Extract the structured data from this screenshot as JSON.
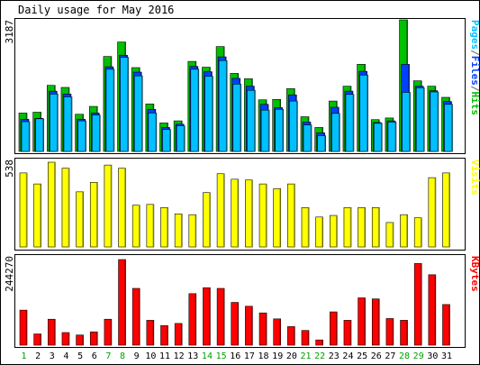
{
  "chart_data": [
    {
      "type": "bar",
      "title": "Daily usage for May 2016",
      "max_label": "3187",
      "ylim": [
        0,
        3187
      ],
      "series_labels": [
        {
          "name": "Pages",
          "color": "#00c0ff"
        },
        {
          "name": "/",
          "color": "#666666"
        },
        {
          "name": "Files",
          "color": "#0040ff"
        },
        {
          "name": "/",
          "color": "#666666"
        },
        {
          "name": "Hits",
          "color": "#00c000"
        }
      ],
      "categories": [
        "1",
        "2",
        "3",
        "4",
        "5",
        "6",
        "7",
        "8",
        "9",
        "10",
        "11",
        "12",
        "13",
        "14",
        "15",
        "16",
        "17",
        "18",
        "19",
        "20",
        "21",
        "22",
        "23",
        "24",
        "25",
        "26",
        "27",
        "28",
        "29",
        "30",
        "31"
      ],
      "weekend_days": [
        "1",
        "7",
        "8",
        "14",
        "15",
        "21",
        "22",
        "28",
        "29"
      ],
      "series": [
        {
          "name": "Hits",
          "color": "#00c000",
          "values": [
            930,
            950,
            1600,
            1550,
            900,
            1090,
            2300,
            2650,
            2030,
            1150,
            690,
            740,
            2180,
            2040,
            2540,
            1890,
            1760,
            1250,
            1260,
            1520,
            840,
            580,
            1220,
            1580,
            2110,
            770,
            810,
            3187,
            1710,
            1580,
            1310
          ]
        },
        {
          "name": "Files",
          "color": "#0040ff",
          "values": [
            780,
            800,
            1460,
            1390,
            780,
            930,
            2050,
            2330,
            1920,
            1020,
            580,
            660,
            2060,
            1930,
            2290,
            1770,
            1580,
            1140,
            1060,
            1370,
            710,
            450,
            1070,
            1460,
            1940,
            700,
            740,
            2110,
            1580,
            1470,
            1210
          ]
        },
        {
          "name": "Pages",
          "color": "#00c0ff",
          "values": [
            720,
            790,
            1390,
            1320,
            740,
            880,
            1990,
            2280,
            1830,
            930,
            530,
            620,
            1990,
            1820,
            2200,
            1630,
            1480,
            1000,
            1020,
            1220,
            640,
            380,
            920,
            1380,
            1850,
            680,
            710,
            1430,
            1540,
            1440,
            1140
          ]
        }
      ]
    },
    {
      "type": "bar",
      "max_label": "538",
      "ylim": [
        0,
        538
      ],
      "series_labels": [
        {
          "name": "Visits",
          "color": "#ffff00"
        }
      ],
      "categories": [
        "1",
        "2",
        "3",
        "4",
        "5",
        "6",
        "7",
        "8",
        "9",
        "10",
        "11",
        "12",
        "13",
        "14",
        "15",
        "16",
        "17",
        "18",
        "19",
        "20",
        "21",
        "22",
        "23",
        "24",
        "25",
        "26",
        "27",
        "28",
        "29",
        "30",
        "31"
      ],
      "series": [
        {
          "name": "Visits",
          "color": "#ffff00",
          "values": [
            470,
            400,
            538,
            500,
            350,
            410,
            520,
            500,
            265,
            270,
            250,
            210,
            205,
            345,
            465,
            430,
            425,
            400,
            370,
            400,
            250,
            190,
            200,
            250,
            250,
            250,
            155,
            205,
            185,
            440,
            470
          ]
        }
      ]
    },
    {
      "type": "bar",
      "max_label": "244270",
      "ylim": [
        0,
        244270
      ],
      "series_labels": [
        {
          "name": "KBytes",
          "color": "#ff0000"
        }
      ],
      "categories": [
        "1",
        "2",
        "3",
        "4",
        "5",
        "6",
        "7",
        "8",
        "9",
        "10",
        "11",
        "12",
        "13",
        "14",
        "15",
        "16",
        "17",
        "18",
        "19",
        "20",
        "21",
        "22",
        "23",
        "24",
        "25",
        "26",
        "27",
        "28",
        "29",
        "30",
        "31"
      ],
      "series": [
        {
          "name": "KBytes",
          "color": "#ff0000",
          "values": [
            100000,
            32000,
            74000,
            36000,
            29000,
            38000,
            74000,
            244270,
            162000,
            71000,
            56000,
            62000,
            147000,
            164000,
            162000,
            122000,
            111000,
            92000,
            75000,
            53000,
            42000,
            15000,
            95000,
            71000,
            135000,
            132000,
            76000,
            71000,
            233000,
            201000,
            116000
          ]
        }
      ]
    }
  ]
}
